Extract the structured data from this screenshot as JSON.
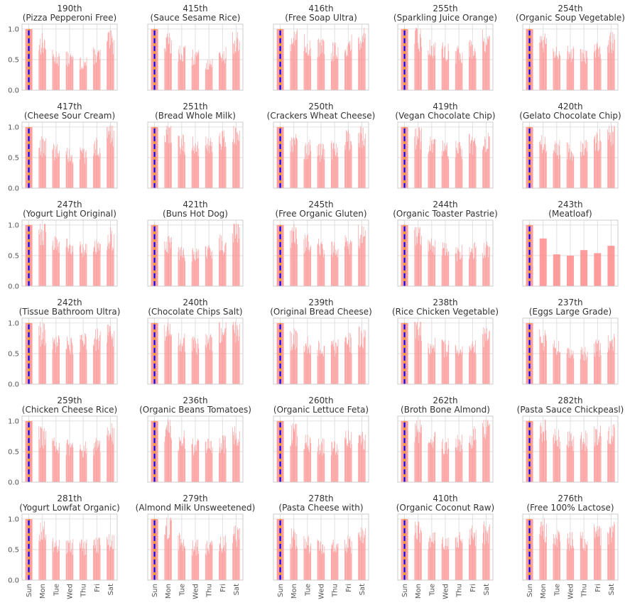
{
  "chart_data": {
    "type": "bar",
    "layout": {
      "rows": 6,
      "cols": 5
    },
    "x_categories": [
      "Sun",
      "Mon",
      "Tue",
      "Wed",
      "Thu",
      "Fri",
      "Sat"
    ],
    "y_ticks": [
      "0.0",
      "0.5",
      "1.0"
    ],
    "ylim": [
      0,
      1.08
    ],
    "grid": true,
    "colors": {
      "bars": "#ff8c8c",
      "vline_blue": "#0000ff",
      "vline_orange": "#ffa500",
      "axes": "#cccccc",
      "gridline": "#d9d9d9"
    },
    "panels": [
      {
        "rank": "190th",
        "name": "(Pizza Pepperoni Free)",
        "day_levels": [
          1.0,
          0.78,
          0.55,
          0.52,
          0.45,
          0.58,
          0.8
        ]
      },
      {
        "rank": "415th",
        "name": "(Sauce Sesame Rice)",
        "day_levels": [
          1.0,
          0.8,
          0.6,
          0.55,
          0.45,
          0.6,
          0.78
        ]
      },
      {
        "rank": "416th",
        "name": "(Free Soap Ultra)",
        "day_levels": [
          1.0,
          0.85,
          0.75,
          0.7,
          0.65,
          0.75,
          0.9
        ]
      },
      {
        "rank": "255th",
        "name": "(Sparkling Juice Orange)",
        "day_levels": [
          1.0,
          0.85,
          0.7,
          0.65,
          0.6,
          0.7,
          0.85
        ]
      },
      {
        "rank": "254th",
        "name": "(Organic Soup Vegetable)",
        "day_levels": [
          1.0,
          0.85,
          0.68,
          0.6,
          0.55,
          0.65,
          0.8
        ]
      },
      {
        "rank": "417th",
        "name": "(Cheese Sour Cream)",
        "day_levels": [
          1.0,
          0.7,
          0.6,
          0.55,
          0.55,
          0.7,
          0.9
        ]
      },
      {
        "rank": "251th",
        "name": "(Bread Whole Milk)",
        "day_levels": [
          1.0,
          0.9,
          0.75,
          0.7,
          0.7,
          0.8,
          0.9
        ]
      },
      {
        "rank": "250th",
        "name": "(Crackers Wheat Cheese)",
        "day_levels": [
          1.0,
          0.8,
          0.65,
          0.6,
          0.65,
          0.8,
          0.85
        ]
      },
      {
        "rank": "419th",
        "name": "(Vegan Chocolate Chip)",
        "day_levels": [
          1.0,
          0.85,
          0.7,
          0.65,
          0.65,
          0.75,
          0.8
        ]
      },
      {
        "rank": "420th",
        "name": "(Gelato Chocolate Chip)",
        "day_levels": [
          1.0,
          0.75,
          0.65,
          0.62,
          0.65,
          0.8,
          0.95
        ]
      },
      {
        "rank": "247th",
        "name": "(Yogurt Light Original)",
        "day_levels": [
          1.0,
          0.9,
          0.7,
          0.65,
          0.62,
          0.7,
          0.8
        ]
      },
      {
        "rank": "421th",
        "name": "(Buns Hot Dog)",
        "day_levels": [
          1.0,
          0.7,
          0.55,
          0.52,
          0.55,
          0.7,
          0.9
        ]
      },
      {
        "rank": "245th",
        "name": "(Free Organic Gluten)",
        "day_levels": [
          1.0,
          0.85,
          0.7,
          0.65,
          0.62,
          0.7,
          0.85
        ]
      },
      {
        "rank": "244th",
        "name": "(Organic Toaster Pastrie)",
        "day_levels": [
          1.0,
          0.85,
          0.65,
          0.6,
          0.55,
          0.6,
          0.6
        ]
      },
      {
        "rank": "243th",
        "name": "(Meatloaf)",
        "day_levels": [
          1.0,
          0.78,
          0.52,
          0.5,
          0.59,
          0.54,
          0.66
        ]
      },
      {
        "rank": "242th",
        "name": "(Tissue Bathroom Ultra)",
        "day_levels": [
          1.0,
          0.85,
          0.7,
          0.65,
          0.7,
          0.75,
          0.8
        ]
      },
      {
        "rank": "240th",
        "name": "(Chocolate Chips Salt)",
        "day_levels": [
          1.0,
          0.85,
          0.7,
          0.65,
          0.72,
          0.85,
          0.9
        ]
      },
      {
        "rank": "239th",
        "name": "(Original Bread Cheese)",
        "day_levels": [
          1.0,
          0.75,
          0.65,
          0.6,
          0.62,
          0.7,
          0.8
        ]
      },
      {
        "rank": "238th",
        "name": "(Rice Chicken Vegetable)",
        "day_levels": [
          1.0,
          0.9,
          0.65,
          0.6,
          0.55,
          0.65,
          0.8
        ]
      },
      {
        "rank": "237th",
        "name": "(Eggs Large Grade)",
        "day_levels": [
          1.0,
          0.75,
          0.6,
          0.5,
          0.5,
          0.6,
          0.7
        ]
      },
      {
        "rank": "259th",
        "name": "(Chicken Cheese Rice)",
        "day_levels": [
          1.0,
          0.75,
          0.6,
          0.58,
          0.55,
          0.6,
          0.8
        ]
      },
      {
        "rank": "236th",
        "name": "(Organic Beans Tomatoes)",
        "day_levels": [
          1.0,
          0.9,
          0.7,
          0.6,
          0.6,
          0.65,
          0.75
        ]
      },
      {
        "rank": "260th",
        "name": "(Organic Lettuce Feta)",
        "day_levels": [
          1.0,
          0.8,
          0.65,
          0.6,
          0.6,
          0.7,
          0.7
        ]
      },
      {
        "rank": "262th",
        "name": "(Broth Bone Almond)",
        "day_levels": [
          1.0,
          0.85,
          0.7,
          0.6,
          0.65,
          0.75,
          0.85
        ]
      },
      {
        "rank": "282th",
        "name": "(Pasta Sauce Chickpeasl)",
        "day_levels": [
          1.0,
          0.9,
          0.75,
          0.7,
          0.7,
          0.78,
          0.8
        ]
      },
      {
        "rank": "281th",
        "name": "(Yogurt Lowfat Organic)",
        "day_levels": [
          1.0,
          0.8,
          0.6,
          0.55,
          0.55,
          0.58,
          0.65
        ]
      },
      {
        "rank": "279th",
        "name": "(Almond Milk Unsweetened)",
        "day_levels": [
          1.0,
          0.9,
          0.65,
          0.55,
          0.55,
          0.6,
          0.75
        ]
      },
      {
        "rank": "278th",
        "name": "(Pasta Cheese with)",
        "day_levels": [
          1.0,
          0.7,
          0.6,
          0.55,
          0.55,
          0.6,
          0.75
        ]
      },
      {
        "rank": "410th",
        "name": "(Organic Coconut Raw)",
        "day_levels": [
          1.0,
          0.85,
          0.65,
          0.6,
          0.65,
          0.75,
          0.8
        ]
      },
      {
        "rank": "276th",
        "name": "(Free 100% Lactose)",
        "day_levels": [
          1.0,
          0.85,
          0.7,
          0.65,
          0.65,
          0.75,
          0.8
        ]
      }
    ]
  }
}
